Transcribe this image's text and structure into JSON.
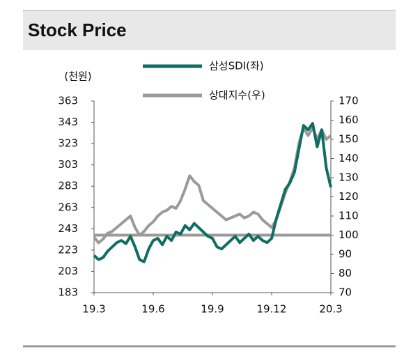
{
  "chart_data": {
    "type": "line",
    "title": "Stock Price",
    "y_label": "(천원)",
    "categories": [
      "19.3",
      null,
      null,
      null,
      null,
      null,
      null,
      null,
      null,
      null,
      null,
      null,
      null,
      "19.6",
      null,
      null,
      null,
      null,
      null,
      null,
      null,
      null,
      null,
      null,
      null,
      null,
      "19.9",
      null,
      null,
      null,
      null,
      null,
      null,
      null,
      null,
      null,
      null,
      null,
      null,
      "19.12",
      null,
      null,
      null,
      null,
      null,
      null,
      null,
      null,
      null,
      null,
      null,
      null,
      "20.3"
    ],
    "series": [
      {
        "name": "삼성SDI(좌)",
        "color": "#0f6e62",
        "axis": "y",
        "values": [
          218,
          214,
          216,
          222,
          226,
          230,
          232,
          229,
          236,
          226,
          214,
          212,
          224,
          232,
          234,
          228,
          236,
          232,
          240,
          238,
          246,
          242,
          248,
          244,
          240,
          236,
          234,
          226,
          224,
          228,
          232,
          236,
          230,
          234,
          238,
          232,
          236,
          232,
          230,
          234,
          252,
          266,
          280,
          286,
          296,
          318,
          340,
          336,
          342,
          320,
          336,
          300,
          282
        ]
      },
      {
        "name": "상대지수(우)",
        "color": "#9a9a9a",
        "axis": "y2",
        "values": [
          99,
          96,
          98,
          101,
          102,
          104,
          106,
          108,
          110,
          104,
          100,
          102,
          105,
          107,
          110,
          112,
          113,
          115,
          114,
          118,
          124,
          131,
          128,
          126,
          118,
          116,
          114,
          112,
          110,
          108,
          109,
          110,
          111,
          109,
          110,
          112,
          111,
          108,
          106,
          104,
          108,
          115,
          122,
          128,
          135,
          148,
          156,
          152,
          156,
          150,
          155,
          150,
          152
        ]
      }
    ],
    "reference_line": 100,
    "ylim": [
      183,
      363
    ],
    "yticks": [
      183,
      203,
      223,
      243,
      263,
      283,
      303,
      323,
      343,
      363
    ],
    "y2lim": [
      70,
      170
    ],
    "y2ticks": [
      70,
      80,
      90,
      100,
      110,
      120,
      130,
      140,
      150,
      160,
      170
    ]
  }
}
